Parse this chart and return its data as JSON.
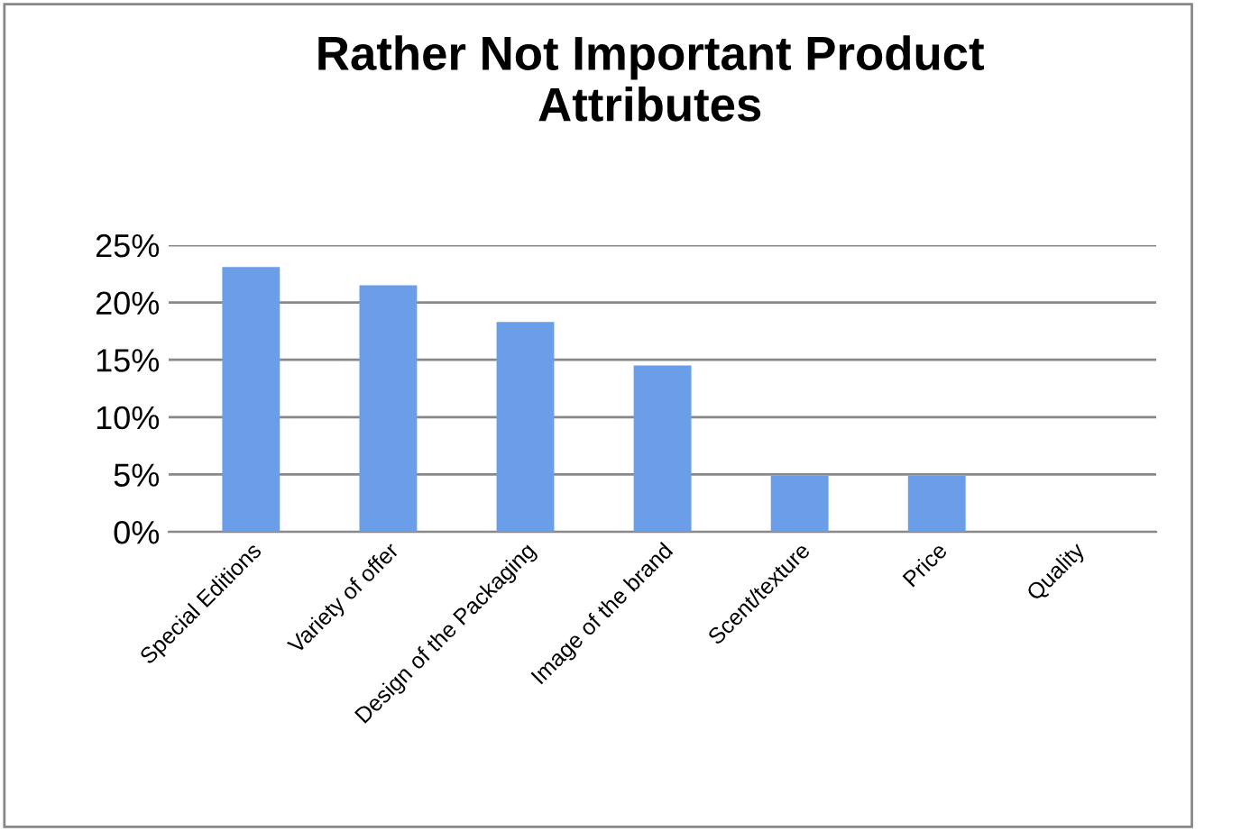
{
  "chart_data": {
    "type": "bar",
    "title": "Rather Not Important Product\nAttributes",
    "categories": [
      "Special Editions",
      "Variety of offer",
      "Design of the Packaging",
      "Image of the brand",
      "Scent/texture",
      "Price",
      "Quality"
    ],
    "values": [
      23.1,
      21.5,
      18.3,
      14.5,
      4.9,
      4.9,
      0
    ],
    "color": "#6a9ee8",
    "ylim": [
      0,
      25
    ],
    "yticks": [
      {
        "value": 0,
        "label": "0%"
      },
      {
        "value": 5,
        "label": "5%"
      },
      {
        "value": 10,
        "label": "10%"
      },
      {
        "value": 15,
        "label": "15%"
      },
      {
        "value": 20,
        "label": "20%"
      },
      {
        "value": 25,
        "label": "25%"
      }
    ],
    "grid": "y",
    "legend": false
  }
}
